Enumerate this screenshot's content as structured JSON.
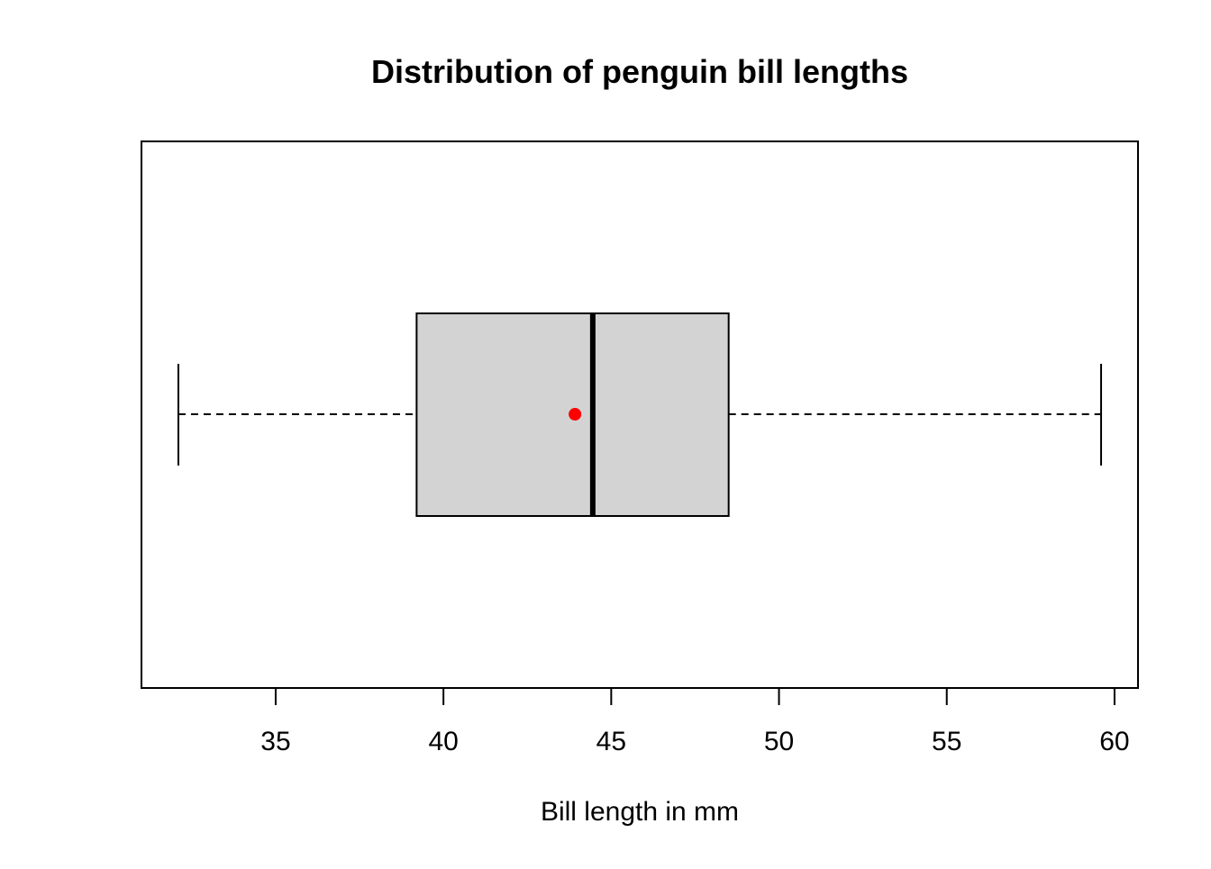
{
  "chart_data": {
    "type": "boxplot",
    "orientation": "horizontal",
    "title": "Distribution of penguin bill lengths",
    "xlabel": "Bill length in mm",
    "ylabel": "",
    "xlim": [
      31.0,
      60.7
    ],
    "ticks": [
      35,
      40,
      45,
      50,
      55,
      60
    ],
    "tick_labels": [
      "35",
      "40",
      "45",
      "50",
      "55",
      "60"
    ],
    "box": {
      "whisker_low": 32.1,
      "q1": 39.2,
      "median": 44.45,
      "q3": 48.5,
      "whisker_high": 59.6
    },
    "mean": 43.92,
    "colors": {
      "box_fill": "#d3d3d3",
      "mean_point": "#ff0000",
      "stroke": "#000000"
    }
  }
}
